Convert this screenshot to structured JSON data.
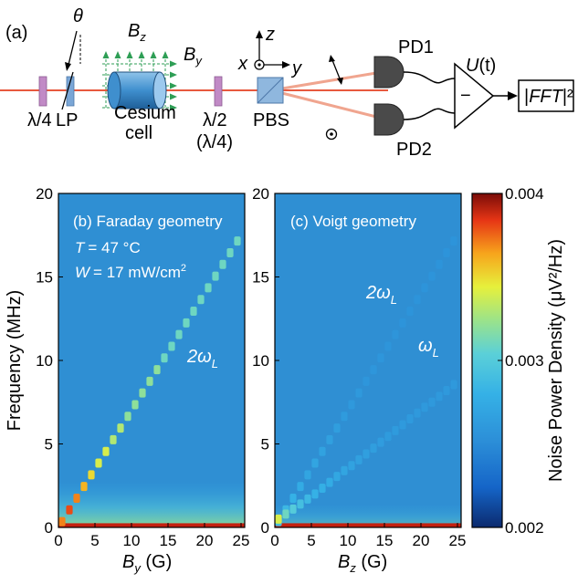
{
  "figure": {
    "setup": {
      "panel_label": "(a)",
      "theta": "θ",
      "bz": "B",
      "bz_sub": "z",
      "by": "B",
      "by_sub": "y",
      "qwp": "λ/4",
      "lp": "LP",
      "cell_line1": "Cesium",
      "cell_line2": "cell",
      "hwp_line1": "λ/2",
      "hwp_line2": "(λ/4)",
      "pbs": "PBS",
      "axis_z": "z",
      "axis_x": "x",
      "axis_y": "y",
      "pd1": "PD1",
      "pd2": "PD2",
      "minus": "−",
      "signal_u": "U",
      "signal_t": "(t)",
      "fft_pre": "|",
      "fft_main": "FFT",
      "fft_post": "|²"
    },
    "panel_b": {
      "label": "(b) Faraday geometry",
      "temp_label": "T",
      "temp_value": "= 47 °C",
      "power_label": "W",
      "power_value": "= 17 mW/cm",
      "power_exp": "2",
      "line_label": "2ω",
      "line_sub": "L",
      "xlabel": "B",
      "xlabel_sub": "y",
      "xlabel_unit": " (G)",
      "ylabel": "Frequency (MHz)"
    },
    "panel_c": {
      "label": "(c) Voigt geometry",
      "line1_label": "2ω",
      "line1_sub": "L",
      "line2_label": "ω",
      "line2_sub": "L",
      "xlabel": "B",
      "xlabel_sub": "z",
      "xlabel_unit": " (G)"
    },
    "colorbar": {
      "label": "Noise Power Density (μV²/Hz)"
    }
  },
  "chart_data": [
    {
      "type": "heatmap",
      "title": "(b) Faraday geometry",
      "xlabel": "B_y (G)",
      "ylabel": "Frequency (MHz)",
      "xlim": [
        0,
        25.5
      ],
      "ylim": [
        0,
        20
      ],
      "xticks": [
        0,
        5,
        10,
        15,
        20,
        25
      ],
      "xtick_labels": [
        "0",
        "5",
        "10",
        "15",
        "20",
        "25"
      ],
      "yticks": [
        0,
        5,
        10,
        15,
        20
      ],
      "ytick_labels": [
        "0",
        "5",
        "10",
        "15",
        "20"
      ],
      "background_value": 0.0025,
      "series": [
        {
          "name": "2ω_L",
          "x": [
            0.5,
            1.5,
            2.5,
            3.5,
            4.5,
            5.5,
            6.5,
            7.5,
            8.5,
            9.5,
            10.5,
            11.5,
            12.5,
            13.5,
            14.5,
            15.5,
            16.5,
            17.5,
            18.5,
            19.5,
            20.5,
            21.5,
            22.5,
            23.5,
            24.5
          ],
          "y": [
            0.35,
            1.05,
            1.75,
            2.45,
            3.15,
            3.85,
            4.55,
            5.25,
            5.95,
            6.65,
            7.35,
            8.05,
            8.75,
            9.45,
            10.15,
            10.85,
            11.55,
            12.25,
            12.95,
            13.65,
            14.35,
            15.05,
            15.75,
            16.45,
            17.15
          ],
          "z": [
            0.0037,
            0.0038,
            0.0037,
            0.0036,
            0.0035,
            0.0034,
            0.0034,
            0.0033,
            0.0033,
            0.0032,
            0.0032,
            0.0032,
            0.0032,
            0.0032,
            0.0031,
            0.0031,
            0.0031,
            0.0031,
            0.0031,
            0.0031,
            0.0031,
            0.0031,
            0.0031,
            0.0031,
            0.0031
          ]
        }
      ]
    },
    {
      "type": "heatmap",
      "title": "(c) Voigt geometry",
      "xlabel": "B_z (G)",
      "xlim": [
        0,
        25.5
      ],
      "ylim": [
        0,
        20
      ],
      "xticks": [
        0,
        5,
        10,
        15,
        20,
        25
      ],
      "xtick_labels": [
        "0",
        "5",
        "10",
        "15",
        "20",
        "25"
      ],
      "yticks": [
        0,
        5,
        10,
        15,
        20
      ],
      "ytick_labels": [
        "0",
        "5",
        "10",
        "15",
        "20"
      ],
      "background_value": 0.0025,
      "series": [
        {
          "name": "2ω_L",
          "x": [
            0.5,
            1.5,
            2.5,
            3.5,
            4.5,
            5.5,
            6.5,
            7.5,
            8.5,
            9.5,
            10.5,
            11.5,
            12.5,
            13.5,
            14.5,
            15.5,
            16.5,
            17.5,
            18.5,
            19.5,
            20.5,
            21.5,
            22.5,
            23.5,
            24.5
          ],
          "y": [
            0.35,
            1.05,
            1.75,
            2.45,
            3.15,
            3.85,
            4.55,
            5.25,
            5.95,
            6.65,
            7.35,
            8.05,
            8.75,
            9.45,
            10.15,
            10.85,
            11.55,
            12.25,
            12.95,
            13.65,
            14.35,
            15.05,
            15.75,
            16.45,
            17.15
          ],
          "z": [
            0.0029,
            0.00285,
            0.0028,
            0.00275,
            0.0027,
            0.0027,
            0.00268,
            0.00266,
            0.00264,
            0.00262,
            0.0026,
            0.0026,
            0.00258,
            0.00258,
            0.00258,
            0.00257,
            0.00257,
            0.00256,
            0.00256,
            0.00256,
            0.00256,
            0.00256,
            0.00256,
            0.00256,
            0.00256
          ]
        },
        {
          "name": "ω_L",
          "x": [
            0.5,
            1.5,
            2.5,
            3.5,
            4.5,
            5.5,
            6.5,
            7.5,
            8.5,
            9.5,
            10.5,
            11.5,
            12.5,
            13.5,
            14.5,
            15.5,
            16.5,
            17.5,
            18.5,
            19.5,
            20.5,
            21.5,
            22.5,
            23.5,
            24.5
          ],
          "y": [
            0.5,
            0.8,
            1.1,
            1.4,
            1.7,
            2.0,
            2.35,
            2.7,
            3.05,
            3.4,
            3.7,
            4.05,
            4.4,
            4.75,
            5.1,
            5.45,
            5.8,
            6.15,
            6.5,
            6.85,
            7.2,
            7.5,
            7.85,
            8.2,
            8.55
          ],
          "z": [
            0.0034,
            0.0031,
            0.003,
            0.0029,
            0.00285,
            0.0028,
            0.00278,
            0.00275,
            0.00272,
            0.0027,
            0.00268,
            0.00266,
            0.00265,
            0.00264,
            0.00263,
            0.00262,
            0.00262,
            0.00261,
            0.00261,
            0.0026,
            0.0026,
            0.0026,
            0.0026,
            0.0026,
            0.0026
          ]
        }
      ]
    },
    {
      "type": "heatmap",
      "title": "colorbar",
      "ylabel": "Noise Power Density (μV²/Hz)",
      "zlim": [
        0.002,
        0.004
      ],
      "ticks": [
        0.002,
        0.003,
        0.004
      ],
      "tick_labels": [
        "0.002",
        "0.003",
        "0.004"
      ],
      "colormap": [
        "#0b2a6e",
        "#1565c8",
        "#2c8fd8",
        "#35b1e6",
        "#5bd0d8",
        "#9be38a",
        "#e6f03c",
        "#f7a51c",
        "#e63515",
        "#7a0c08"
      ]
    }
  ]
}
